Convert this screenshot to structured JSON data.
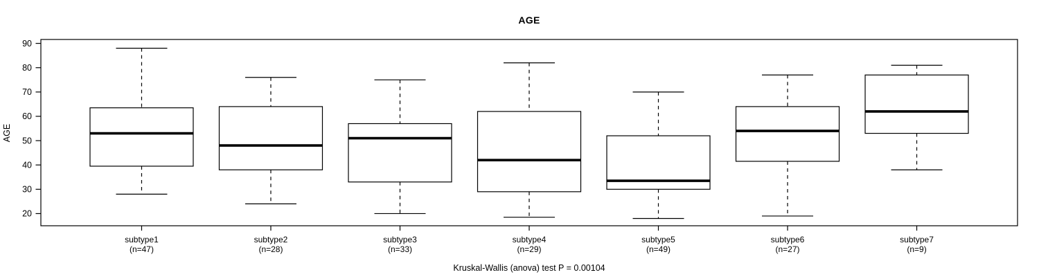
{
  "chart_data": {
    "type": "boxplot",
    "title": "AGE",
    "ylabel": "AGE",
    "xlabel": "",
    "footnote": "Kruskal-Wallis (anova) test P = 0.00104",
    "yticks": [
      20,
      30,
      40,
      50,
      60,
      70,
      80,
      90
    ],
    "ylim": [
      15,
      91.6
    ],
    "grid": false,
    "legend": "none",
    "line_color": "#000000",
    "box_fill": "#ffffff",
    "groups": [
      {
        "label": "subtype1",
        "sublabel": "(n=47)",
        "n": 47,
        "whisker_low": 28,
        "q1": 39.5,
        "median": 53,
        "q3": 63.5,
        "whisker_high": 88
      },
      {
        "label": "subtype2",
        "sublabel": "(n=28)",
        "n": 28,
        "whisker_low": 24,
        "q1": 38,
        "median": 48,
        "q3": 64,
        "whisker_high": 76
      },
      {
        "label": "subtype3",
        "sublabel": "(n=33)",
        "n": 33,
        "whisker_low": 20,
        "q1": 33,
        "median": 51,
        "q3": 57,
        "whisker_high": 75
      },
      {
        "label": "subtype4",
        "sublabel": "(n=29)",
        "n": 29,
        "whisker_low": 18.5,
        "q1": 29,
        "median": 42,
        "q3": 62,
        "whisker_high": 82
      },
      {
        "label": "subtype5",
        "sublabel": "(n=49)",
        "n": 49,
        "whisker_low": 18,
        "q1": 30,
        "median": 33.5,
        "q3": 52,
        "whisker_high": 70
      },
      {
        "label": "subtype6",
        "sublabel": "(n=27)",
        "n": 27,
        "whisker_low": 19,
        "q1": 41.5,
        "median": 54,
        "q3": 64,
        "whisker_high": 77
      },
      {
        "label": "subtype7",
        "sublabel": "(n=9)",
        "n": 9,
        "whisker_low": 38,
        "q1": 53,
        "median": 62,
        "q3": 77,
        "whisker_high": 81
      }
    ]
  }
}
